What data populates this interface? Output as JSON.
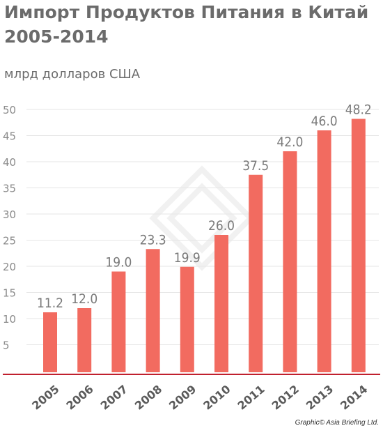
{
  "title_line1": "Импорт Продуктов Питания в Китай",
  "title_line2": "2005-2014",
  "unit": "млрд долларов США",
  "credit": "Graphic© Asia Briefing Ltd.",
  "colors": {
    "bar": "#f26b60",
    "baseline": "#c0202e",
    "grid": "#e6e6e6",
    "text": "#7a7a7a"
  },
  "chart_data": {
    "type": "bar",
    "categories": [
      "2005",
      "2006",
      "2007",
      "2008",
      "2009",
      "2010",
      "2011",
      "2012",
      "2013",
      "2014"
    ],
    "values": [
      11.2,
      12.0,
      19.0,
      23.3,
      19.9,
      26.0,
      37.5,
      42.0,
      46.0,
      48.2
    ],
    "value_labels": [
      "11.2",
      "12.0",
      "19.0",
      "23.3",
      "19.9",
      "26.0",
      "37.5",
      "42.0",
      "46.0",
      "48.2"
    ],
    "y_ticks": [
      "5",
      "10",
      "15",
      "20",
      "25",
      "30",
      "35",
      "40",
      "45",
      "50"
    ],
    "ylim": [
      0,
      50
    ],
    "title": "Импорт Продуктов Питания в Китай 2005-2014",
    "ylabel": "млрд долларов США",
    "xlabel": "",
    "grid": true
  }
}
